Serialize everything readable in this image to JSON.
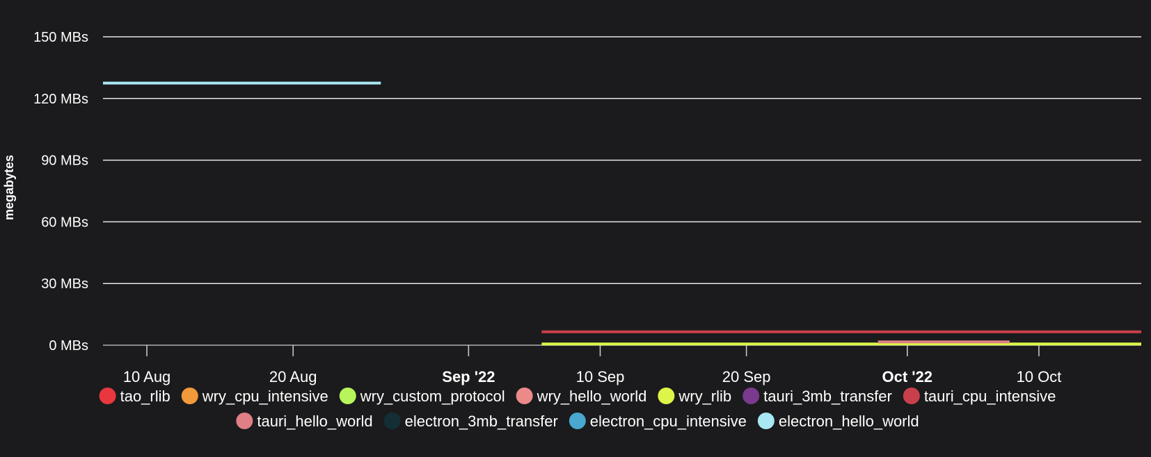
{
  "chart_data": {
    "type": "line",
    "ylabel": "megabytes",
    "y_ticks": [
      "0 MBs",
      "30 MBs",
      "60 MBs",
      "90 MBs",
      "120 MBs",
      "150 MBs"
    ],
    "ylim": [
      0,
      150
    ],
    "xlim": [
      "2022-08-07",
      "2022-10-17"
    ],
    "x_ticks": [
      {
        "label": "10 Aug",
        "date": "2022-08-10",
        "bold": false
      },
      {
        "label": "20 Aug",
        "date": "2022-08-20",
        "bold": false
      },
      {
        "label": "Sep '22",
        "date": "2022-09-01",
        "bold": true
      },
      {
        "label": "10 Sep",
        "date": "2022-09-10",
        "bold": false
      },
      {
        "label": "20 Sep",
        "date": "2022-09-20",
        "bold": false
      },
      {
        "label": "Oct '22",
        "date": "2022-10-01",
        "bold": true
      },
      {
        "label": "10 Oct",
        "date": "2022-10-10",
        "bold": false
      }
    ],
    "grid": true,
    "legend_position": "bottom",
    "series": [
      {
        "name": "tao_rlib",
        "color": "#e8383d",
        "points": []
      },
      {
        "name": "wry_cpu_intensive",
        "color": "#f29a3a",
        "points": []
      },
      {
        "name": "wry_custom_protocol",
        "color": "#b7f55b",
        "points": []
      },
      {
        "name": "wry_hello_world",
        "color": "#ec8a8a",
        "points": []
      },
      {
        "name": "wry_rlib",
        "color": "#dcf547",
        "points": [
          [
            "2022-09-06",
            0.6
          ],
          [
            "2022-10-17",
            0.6
          ]
        ]
      },
      {
        "name": "tauri_3mb_transfer",
        "color": "#7a3a8e",
        "points": []
      },
      {
        "name": "tauri_cpu_intensive",
        "color": "#c9404c",
        "points": [
          [
            "2022-09-06",
            6.5
          ],
          [
            "2022-10-17",
            6.5
          ]
        ]
      },
      {
        "name": "tauri_hello_world",
        "color": "#df7f86",
        "points": [
          [
            "2022-09-29",
            1.6
          ],
          [
            "2022-10-08",
            1.6
          ]
        ]
      },
      {
        "name": "electron_3mb_transfer",
        "color": "#132f35",
        "points": []
      },
      {
        "name": "electron_cpu_intensive",
        "color": "#4aa7cf",
        "points": []
      },
      {
        "name": "electron_hello_world",
        "color": "#a9e7f2",
        "points": [
          [
            "2022-08-07",
            127.5
          ],
          [
            "2022-08-26",
            127.5
          ]
        ]
      }
    ]
  }
}
